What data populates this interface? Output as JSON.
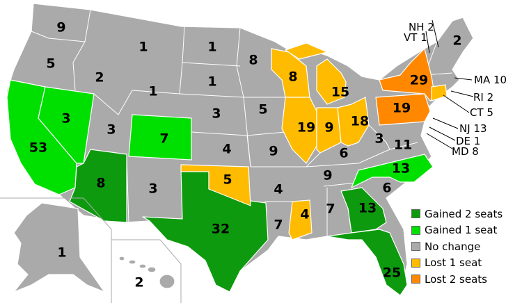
{
  "colors": {
    "gained2": "#0e9a0e",
    "gained1": "#00e000",
    "nochange": "#aaaaaa",
    "lost1": "#ffbb00",
    "lost2": "#ff8800"
  },
  "legend": [
    {
      "key": "gained2",
      "label": "Gained 2 seats"
    },
    {
      "key": "gained1",
      "label": "Gained 1 seat"
    },
    {
      "key": "nochange",
      "label": "No change"
    },
    {
      "key": "lost1",
      "label": "Lost 1 seat"
    },
    {
      "key": "lost2",
      "label": "Lost 2 seats"
    }
  ],
  "states": {
    "WA": {
      "seats": "9",
      "change": "nochange"
    },
    "OR": {
      "seats": "5",
      "change": "nochange"
    },
    "CA": {
      "seats": "53",
      "change": "gained1"
    },
    "NV": {
      "seats": "3",
      "change": "gained1"
    },
    "ID": {
      "seats": "2",
      "change": "nochange"
    },
    "MT": {
      "seats": "1",
      "change": "nochange"
    },
    "WY": {
      "seats": "1",
      "change": "nochange"
    },
    "UT": {
      "seats": "3",
      "change": "nochange"
    },
    "CO": {
      "seats": "7",
      "change": "gained1"
    },
    "AZ": {
      "seats": "8",
      "change": "gained2"
    },
    "NM": {
      "seats": "3",
      "change": "nochange"
    },
    "ND": {
      "seats": "1",
      "change": "nochange"
    },
    "SD": {
      "seats": "1",
      "change": "nochange"
    },
    "NE": {
      "seats": "3",
      "change": "nochange"
    },
    "KS": {
      "seats": "4",
      "change": "nochange"
    },
    "OK": {
      "seats": "5",
      "change": "lost1"
    },
    "TX": {
      "seats": "32",
      "change": "gained2"
    },
    "MN": {
      "seats": "8",
      "change": "nochange"
    },
    "IA": {
      "seats": "5",
      "change": "nochange"
    },
    "MO": {
      "seats": "9",
      "change": "nochange"
    },
    "AR": {
      "seats": "4",
      "change": "nochange"
    },
    "LA": {
      "seats": "7",
      "change": "nochange"
    },
    "WI": {
      "seats": "8",
      "change": "lost1"
    },
    "IL": {
      "seats": "19",
      "change": "lost1"
    },
    "MI": {
      "seats": "15",
      "change": "lost1"
    },
    "IN": {
      "seats": "9",
      "change": "lost1"
    },
    "OH": {
      "seats": "18",
      "change": "lost1"
    },
    "KY": {
      "seats": "6",
      "change": "nochange"
    },
    "TN": {
      "seats": "9",
      "change": "nochange"
    },
    "MS": {
      "seats": "4",
      "change": "lost1"
    },
    "AL": {
      "seats": "7",
      "change": "nochange"
    },
    "GA": {
      "seats": "13",
      "change": "gained2"
    },
    "FL": {
      "seats": "25",
      "change": "gained2"
    },
    "SC": {
      "seats": "6",
      "change": "nochange"
    },
    "NC": {
      "seats": "13",
      "change": "gained1"
    },
    "VA": {
      "seats": "11",
      "change": "nochange"
    },
    "WV": {
      "seats": "3",
      "change": "nochange"
    },
    "PA": {
      "seats": "19",
      "change": "lost2"
    },
    "NY": {
      "seats": "29",
      "change": "lost2"
    },
    "ME": {
      "seats": "2",
      "change": "nochange"
    },
    "AK": {
      "seats": "1",
      "change": "nochange"
    },
    "HI": {
      "seats": "2",
      "change": "nochange"
    }
  },
  "callouts": {
    "NH": "NH 2",
    "VT": "VT 1",
    "MA": "MA 10",
    "RI": "RI 2",
    "CT": "CT 5",
    "NJ": "NJ 13",
    "DE": "DE 1",
    "MD": "MD 8"
  }
}
